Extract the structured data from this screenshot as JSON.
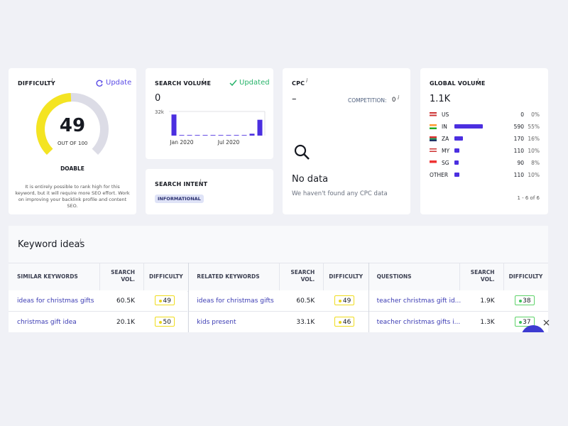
{
  "difficulty": {
    "label": "DIFFICULTY",
    "info": "i",
    "update": "Update",
    "value": 49,
    "out_of_label": "OUT OF",
    "max": 100,
    "rating": "DOABLE",
    "description": "It is entirely possible to rank high for this keyword, but it will require more SEO effort. Work on improving your backlink profile and content SEO."
  },
  "search_volume": {
    "label": "SEARCH VOLUME",
    "info": "i",
    "status": "Updated",
    "value": 0,
    "chart": {
      "type": "bar",
      "color": "#4b2fe0",
      "ylim": [
        0,
        32000
      ],
      "yticks": [
        {
          "value": 32000,
          "label": "32k"
        }
      ],
      "categories": [
        null,
        "Jan 2020",
        null,
        null,
        null,
        null,
        null,
        "Jul 2020",
        null,
        null,
        null,
        null
      ],
      "values": [
        28000,
        800,
        800,
        800,
        800,
        800,
        800,
        800,
        800,
        800,
        2500,
        21000
      ]
    }
  },
  "search_intent": {
    "label": "SEARCH INTENT",
    "info": "i",
    "tag": "INFORMATIONAL"
  },
  "cpc": {
    "label": "CPC",
    "info": "i",
    "value": "–",
    "competition_label": "COMPETITION:",
    "competition": 0,
    "competition_info": "i",
    "empty_title": "No data",
    "empty_text": "We haven't found any CPC data"
  },
  "global_volume": {
    "label": "GLOBAL VOLUME",
    "info": "i",
    "value": "1.1K",
    "color": "#4b2fe0",
    "rows": [
      {
        "country": "US",
        "volume": 0,
        "share": "0%"
      },
      {
        "country": "IN",
        "volume": 590,
        "share": "55%"
      },
      {
        "country": "ZA",
        "volume": 170,
        "share": "16%"
      },
      {
        "country": "MY",
        "volume": 110,
        "share": "10%"
      },
      {
        "country": "SG",
        "volume": 90,
        "share": "8%"
      },
      {
        "country": "OTHER",
        "volume": 110,
        "share": "10%"
      }
    ],
    "pagination": "1 - 6 of 6"
  },
  "keyword_ideas": {
    "title": "Keyword ideas",
    "info": "i",
    "groups": [
      {
        "headers": [
          "SIMILAR KEYWORDS",
          "SEARCH VOL.",
          "DIFFICULTY"
        ],
        "rows": [
          [
            "ideas for christmas gifts",
            "60.5K",
            49
          ],
          [
            "christmas gift idea",
            "20.1K",
            50
          ]
        ]
      },
      {
        "headers": [
          "RELATED KEYWORDS",
          "SEARCH VOL.",
          "DIFFICULTY"
        ],
        "rows": [
          [
            "ideas for christmas gifts",
            "60.5K",
            49
          ],
          [
            "kids present",
            "33.1K",
            46
          ]
        ]
      },
      {
        "headers": [
          "QUESTIONS",
          "SEARCH VOL.",
          "DIFFICULTY"
        ],
        "rows": [
          [
            "teacher christmas gift id...",
            "1.9K",
            38
          ],
          [
            "teacher christmas gifts i...",
            "1.3K",
            37
          ]
        ]
      }
    ]
  }
}
